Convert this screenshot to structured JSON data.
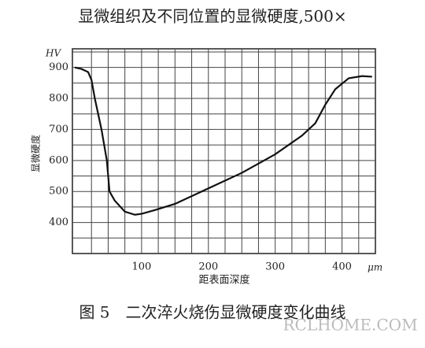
{
  "chart_data": {
    "type": "line",
    "title": "显微组织及不同位置的显微硬度,500×",
    "caption": "图 5　二次淬火烧伤显微硬度变化曲线",
    "watermark": "RCLHOME.COM",
    "y_unit": "HV",
    "x_unit": "μm",
    "xlabel": "距表面深度",
    "ylabel": "显微硬度",
    "xlim": [
      0,
      450
    ],
    "ylim": [
      300,
      960
    ],
    "xticks": [
      100,
      200,
      300,
      400
    ],
    "yticks": [
      400,
      500,
      600,
      700,
      800,
      900
    ],
    "grid": true,
    "color": "#111",
    "x": [
      0,
      10,
      20,
      25,
      30,
      40,
      48,
      52,
      60,
      75,
      90,
      100,
      120,
      150,
      200,
      250,
      300,
      340,
      360,
      375,
      390,
      410,
      430,
      445
    ],
    "values": [
      900,
      895,
      885,
      860,
      800,
      700,
      600,
      500,
      470,
      435,
      425,
      428,
      440,
      460,
      510,
      560,
      620,
      680,
      720,
      780,
      830,
      865,
      872,
      870
    ]
  }
}
